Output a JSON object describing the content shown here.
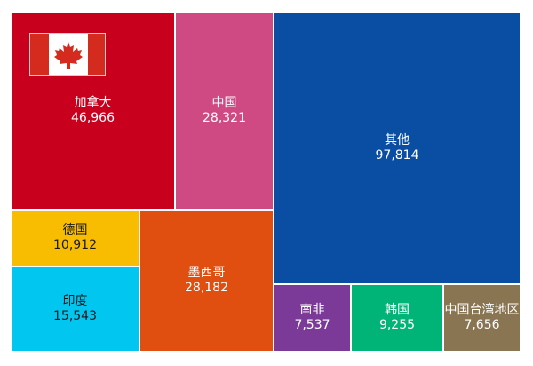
{
  "chart_data": {
    "type": "treemap",
    "items": [
      {
        "name": "加拿大",
        "value": "46,966",
        "color": "#c8001e",
        "text_color": "#ffffff",
        "icon": "canada-flag"
      },
      {
        "name": "中国",
        "value": "28,321",
        "color": "#cf4a82",
        "text_color": "#ffffff"
      },
      {
        "name": "其他",
        "value": "97,814",
        "color": "#0a4ea3",
        "text_color": "#ffffff"
      },
      {
        "name": "德国",
        "value": "10,912",
        "color": "#f8bd00",
        "text_color": "#1a1a1a"
      },
      {
        "name": "墨西哥",
        "value": "28,182",
        "color": "#e04e10",
        "text_color": "#ffffff"
      },
      {
        "name": "印度",
        "value": "15,543",
        "color": "#00c6f0",
        "text_color": "#1a1a1a"
      },
      {
        "name": "南非",
        "value": "7,537",
        "color": "#7c3a98",
        "text_color": "#ffffff"
      },
      {
        "name": "韩国",
        "value": "9,255",
        "color": "#00b478",
        "text_color": "#ffffff"
      },
      {
        "name": "中国台湾地区",
        "value": "7,656",
        "color": "#8a7552",
        "text_color": "#ffffff"
      }
    ]
  }
}
